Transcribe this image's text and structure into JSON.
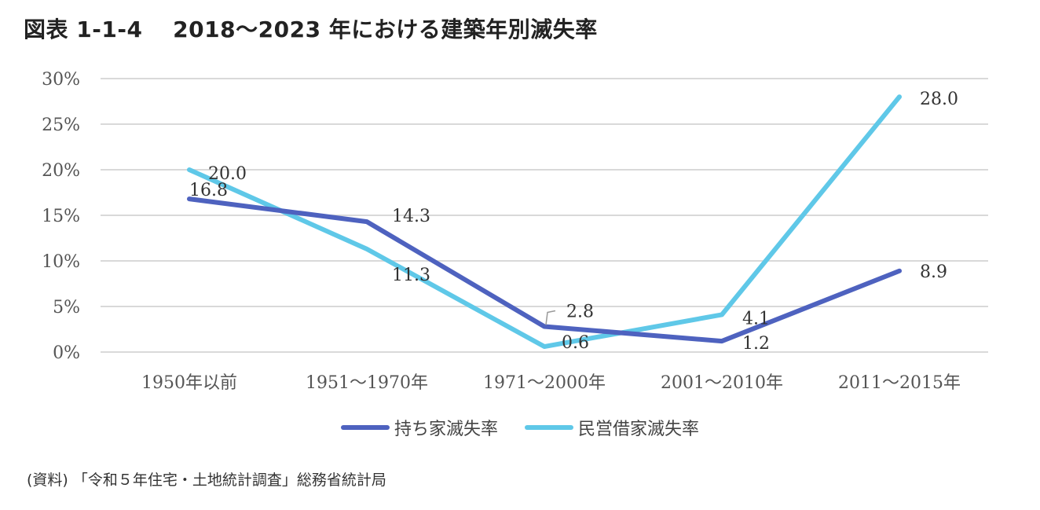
{
  "title": "図表 1-1-4　 2018～2023 年における建築年別滅失率",
  "source": "(資料) 「令和５年住宅・土地統計調査」総務省統計局",
  "chart_data": {
    "type": "line",
    "categories": [
      "1950年以前",
      "1951～1970年",
      "1971～2000年",
      "2001～2010年",
      "2011～2015年"
    ],
    "y_ticks": [
      "0%",
      "5%",
      "10%",
      "15%",
      "20%",
      "25%",
      "30%"
    ],
    "ylim": [
      0,
      30
    ],
    "grid": true,
    "legend_position": "bottom",
    "series": [
      {
        "name": "持ち家滅失率",
        "color": "#4e62bf",
        "values": [
          16.8,
          14.3,
          2.8,
          1.2,
          8.9
        ],
        "labels": [
          "16.8",
          "14.3",
          "2.8",
          "1.2",
          "8.9"
        ]
      },
      {
        "name": "民営借家滅失率",
        "color": "#5fc8e8",
        "values": [
          20.0,
          11.3,
          0.6,
          4.1,
          28.0
        ],
        "labels": [
          "20.0",
          "11.3",
          "0.6",
          "4.1",
          "28.0"
        ]
      }
    ]
  }
}
